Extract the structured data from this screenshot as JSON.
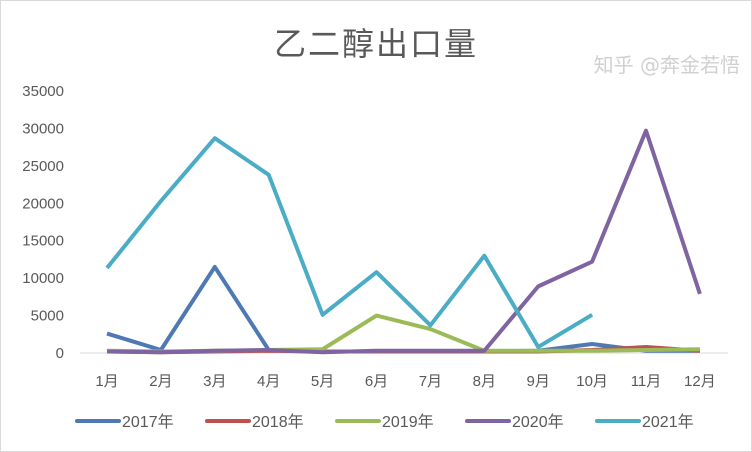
{
  "chart_data": {
    "type": "line",
    "title": "乙二醇出口量",
    "categories": [
      "1月",
      "2月",
      "3月",
      "4月",
      "5月",
      "6月",
      "7月",
      "8月",
      "9月",
      "10月",
      "11月",
      "12月"
    ],
    "ylim": [
      0,
      35000
    ],
    "yticks": [
      0,
      5000,
      10000,
      15000,
      20000,
      25000,
      30000,
      35000
    ],
    "grid": false,
    "legend": "bottom",
    "series": [
      {
        "name": "2017年",
        "color": "#4e79b5",
        "values": [
          2600,
          400,
          11500,
          400,
          200,
          200,
          200,
          200,
          300,
          1200,
          300,
          300
        ]
      },
      {
        "name": "2018年",
        "color": "#c0504d",
        "values": [
          200,
          100,
          200,
          300,
          200,
          200,
          200,
          200,
          200,
          400,
          800,
          300
        ]
      },
      {
        "name": "2019年",
        "color": "#9bbb59",
        "values": [
          300,
          200,
          300,
          400,
          500,
          5000,
          3200,
          300,
          300,
          300,
          400,
          500
        ]
      },
      {
        "name": "2020年",
        "color": "#8064a2",
        "values": [
          200,
          100,
          300,
          400,
          100,
          300,
          300,
          300,
          8900,
          12200,
          29700,
          7900
        ]
      },
      {
        "name": "2021年",
        "color": "#4bacc6",
        "values": [
          11350,
          20300,
          28700,
          23800,
          5100,
          10800,
          3700,
          13000,
          800,
          5100,
          null,
          null
        ]
      }
    ]
  },
  "watermark": "知乎 @奔金若悟"
}
